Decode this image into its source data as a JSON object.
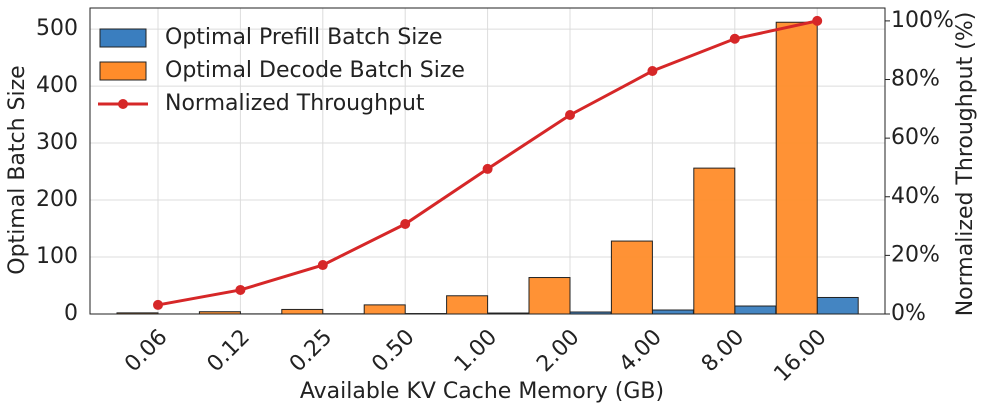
{
  "chart_data": {
    "type": "bar",
    "xlabel": "Available KV Cache Memory (GB)",
    "ylabel": "Optimal Batch Size",
    "y2label": "Normalized Throughput (%)",
    "categories": [
      "0.06",
      "0.12",
      "0.25",
      "0.50",
      "1.00",
      "2.00",
      "4.00",
      "8.00",
      "16.00"
    ],
    "series": [
      {
        "name": "Optimal Prefill Batch Size",
        "color": "#3a7ebf",
        "values": [
          0.1,
          0.2,
          0.4,
          0.8,
          1.7,
          3.5,
          7,
          14,
          29
        ]
      },
      {
        "name": "Optimal Decode Batch Size",
        "color": "#ff8c2a",
        "values": [
          2,
          4,
          8,
          16,
          32,
          64,
          128,
          256,
          512
        ]
      },
      {
        "name": "Normalized Throughput",
        "color": "#d62728",
        "type": "line",
        "axis": "y2",
        "values": [
          3.1,
          8.2,
          16.7,
          30.7,
          49.5,
          67.9,
          82.9,
          93.9,
          100
        ]
      }
    ],
    "ylim": [
      0,
      537
    ],
    "yticks": [
      0,
      100,
      200,
      300,
      400,
      500
    ],
    "y2lim": [
      0,
      104.4
    ],
    "y2ticks": [
      {
        "value": 0,
        "label": "0%"
      },
      {
        "value": 20,
        "label": "20%"
      },
      {
        "value": 40,
        "label": "40%"
      },
      {
        "value": 60,
        "label": "60%"
      },
      {
        "value": 80,
        "label": "80%"
      },
      {
        "value": 100,
        "label": "100%"
      }
    ],
    "ylabel_color": "#0d3d58",
    "y2label_color": "#d62728",
    "grid": true,
    "legend": "upper left"
  }
}
